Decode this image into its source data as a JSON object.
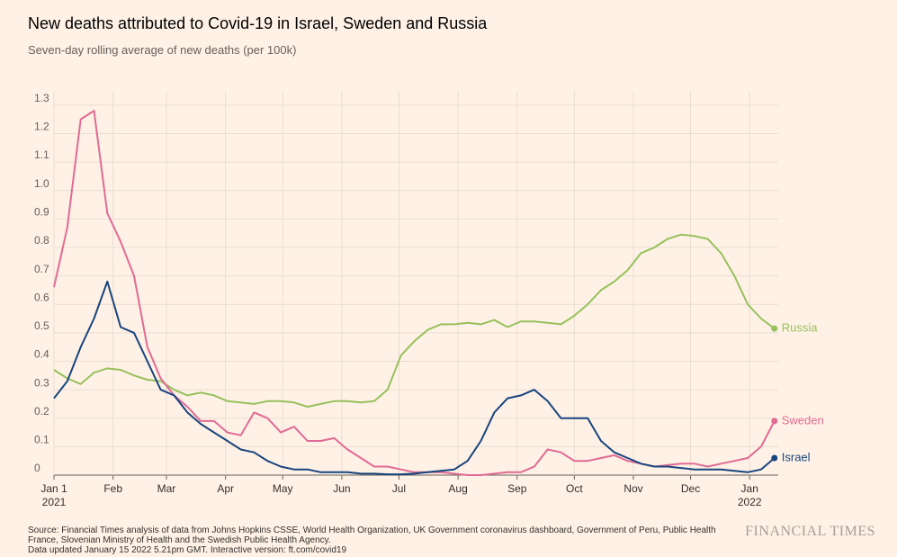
{
  "chart_data": {
    "type": "line",
    "title": "New deaths attributed to Covid-19 in Israel, Sweden and Russia",
    "subtitle": "Seven-day rolling average of new deaths (per 100k)",
    "x": [
      "2021-01-01",
      "2021-01-08",
      "2021-01-15",
      "2021-01-22",
      "2021-01-29",
      "2021-02-05",
      "2021-02-12",
      "2021-02-19",
      "2021-02-26",
      "2021-03-05",
      "2021-03-12",
      "2021-03-19",
      "2021-03-26",
      "2021-04-02",
      "2021-04-09",
      "2021-04-16",
      "2021-04-23",
      "2021-04-30",
      "2021-05-07",
      "2021-05-14",
      "2021-05-21",
      "2021-05-28",
      "2021-06-04",
      "2021-06-11",
      "2021-06-18",
      "2021-06-25",
      "2021-07-02",
      "2021-07-09",
      "2021-07-16",
      "2021-07-23",
      "2021-07-30",
      "2021-08-06",
      "2021-08-13",
      "2021-08-20",
      "2021-08-27",
      "2021-09-03",
      "2021-09-10",
      "2021-09-17",
      "2021-09-24",
      "2021-10-01",
      "2021-10-08",
      "2021-10-15",
      "2021-10-22",
      "2021-10-29",
      "2021-11-05",
      "2021-11-12",
      "2021-11-19",
      "2021-11-26",
      "2021-12-03",
      "2021-12-10",
      "2021-12-17",
      "2021-12-24",
      "2021-12-31",
      "2022-01-07",
      "2022-01-14"
    ],
    "series": [
      {
        "name": "Russia",
        "color": "#96c15c",
        "values": [
          0.37,
          0.34,
          0.32,
          0.36,
          0.375,
          0.37,
          0.35,
          0.335,
          0.33,
          0.3,
          0.28,
          0.29,
          0.28,
          0.26,
          0.255,
          0.25,
          0.26,
          0.26,
          0.255,
          0.24,
          0.25,
          0.26,
          0.26,
          0.255,
          0.26,
          0.3,
          0.42,
          0.47,
          0.51,
          0.53,
          0.53,
          0.535,
          0.53,
          0.545,
          0.52,
          0.54,
          0.54,
          0.535,
          0.53,
          0.56,
          0.6,
          0.65,
          0.68,
          0.72,
          0.78,
          0.8,
          0.83,
          0.845,
          0.84,
          0.83,
          0.78,
          0.7,
          0.6,
          0.55,
          0.515
        ]
      },
      {
        "name": "Sweden",
        "color": "#e16a94",
        "values": [
          0.66,
          0.87,
          1.25,
          1.28,
          0.92,
          0.82,
          0.7,
          0.45,
          0.34,
          0.28,
          0.24,
          0.19,
          0.19,
          0.15,
          0.14,
          0.22,
          0.2,
          0.15,
          0.17,
          0.12,
          0.12,
          0.13,
          0.09,
          0.06,
          0.03,
          0.03,
          0.02,
          0.01,
          0.01,
          0.01,
          0.005,
          0,
          0,
          0.005,
          0.01,
          0.01,
          0.03,
          0.09,
          0.08,
          0.05,
          0.05,
          0.06,
          0.07,
          0.05,
          0.04,
          0.03,
          0.035,
          0.04,
          0.04,
          0.03,
          0.04,
          0.05,
          0.06,
          0.1,
          0.19
        ]
      },
      {
        "name": "Israel",
        "color": "#17457f",
        "values": [
          0.27,
          0.33,
          0.45,
          0.55,
          0.68,
          0.52,
          0.5,
          0.4,
          0.3,
          0.28,
          0.22,
          0.18,
          0.15,
          0.12,
          0.09,
          0.08,
          0.05,
          0.03,
          0.02,
          0.02,
          0.01,
          0.01,
          0.01,
          0.005,
          0.005,
          0.003,
          0.003,
          0.005,
          0.01,
          0.015,
          0.02,
          0.05,
          0.12,
          0.22,
          0.27,
          0.28,
          0.3,
          0.26,
          0.2,
          0.2,
          0.2,
          0.12,
          0.08,
          0.06,
          0.04,
          0.03,
          0.03,
          0.025,
          0.02,
          0.02,
          0.02,
          0.015,
          0.01,
          0.02,
          0.06
        ]
      }
    ],
    "xlim": [
      "2021-01-01",
      "2022-01-16"
    ],
    "xticks": [
      {
        "value": "2021-01-01",
        "label": "Jan 1\n2021"
      },
      {
        "value": "2021-02-01",
        "label": "Feb"
      },
      {
        "value": "2021-03-01",
        "label": "Mar"
      },
      {
        "value": "2021-04-01",
        "label": "Apr"
      },
      {
        "value": "2021-05-01",
        "label": "May"
      },
      {
        "value": "2021-06-01",
        "label": "Jun"
      },
      {
        "value": "2021-07-01",
        "label": "Jul"
      },
      {
        "value": "2021-08-01",
        "label": "Aug"
      },
      {
        "value": "2021-09-01",
        "label": "Sep"
      },
      {
        "value": "2021-10-01",
        "label": "Oct"
      },
      {
        "value": "2021-11-01",
        "label": "Nov"
      },
      {
        "value": "2021-12-01",
        "label": "Dec"
      },
      {
        "value": "2022-01-01",
        "label": "Jan\n2022"
      }
    ],
    "ylim": [
      0,
      1.35
    ],
    "yticks": [
      0,
      0.1,
      0.2,
      0.3,
      0.4,
      0.5,
      0.6,
      0.7,
      0.8,
      0.9,
      {
        "value": 1,
        "label": "1.0"
      },
      1.1,
      1.2,
      1.3
    ],
    "grid": true,
    "source": "Source: Financial Times analysis of data from Johns Hopkins CSSE, World Health Organization, UK Government coronavirus dashboard, Government of Peru, Public Health France, Slovenian Ministry of Health and the Swedish Public Health Agency.",
    "note": "Data updated January 15 2022 5.21pm GMT. Interactive version: ft.com/covid19",
    "logo": "FINANCIAL TIMES"
  }
}
